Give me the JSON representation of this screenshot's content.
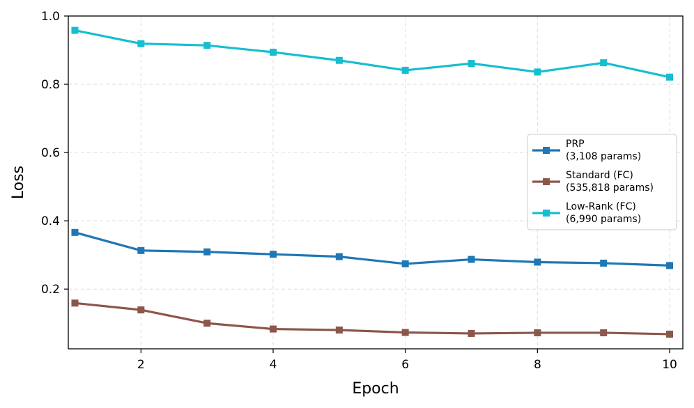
{
  "chart_data": {
    "type": "line",
    "xlabel": "Epoch",
    "ylabel": "Loss",
    "xlim": [
      0.9,
      10.2
    ],
    "ylim": [
      0.025,
      1.0
    ],
    "xticks": [
      2,
      4,
      6,
      8,
      10
    ],
    "xtick_labels": [
      "2",
      "4",
      "6",
      "8",
      "10"
    ],
    "yticks": [
      0.2,
      0.4,
      0.6,
      0.8,
      1.0
    ],
    "ytick_labels": [
      "0.2",
      "0.4",
      "0.6",
      "0.8",
      "1.0"
    ],
    "grid": true,
    "legend_position": "center-right",
    "x": [
      1,
      2,
      3,
      4,
      5,
      6,
      7,
      8,
      9,
      10
    ],
    "series": [
      {
        "name_line1": "PRP",
        "name_line2": "(3,108 params)",
        "color": "#1f77b4",
        "marker": "square",
        "values": [
          0.366,
          0.313,
          0.309,
          0.302,
          0.295,
          0.274,
          0.287,
          0.279,
          0.276,
          0.269
        ]
      },
      {
        "name_line1": "Standard (FC)",
        "name_line2": "(535,818 params)",
        "color": "#8c564b",
        "marker": "square",
        "values": [
          0.159,
          0.139,
          0.1,
          0.083,
          0.08,
          0.073,
          0.07,
          0.072,
          0.072,
          0.068
        ]
      },
      {
        "name_line1": "Low-Rank (FC)",
        "name_line2": "(6,990 params)",
        "color": "#17becf",
        "marker": "square",
        "values": [
          0.958,
          0.919,
          0.914,
          0.894,
          0.87,
          0.841,
          0.861,
          0.836,
          0.863,
          0.821
        ]
      }
    ]
  }
}
